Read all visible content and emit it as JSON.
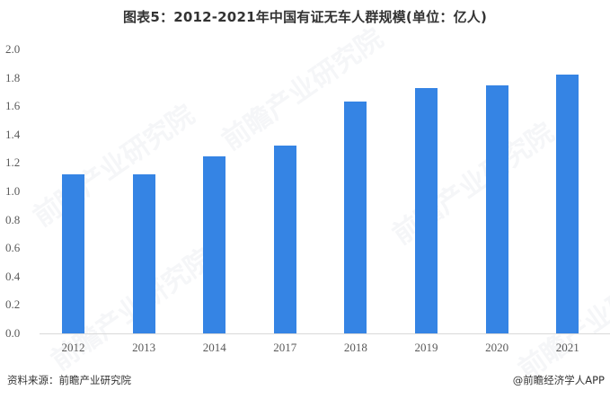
{
  "title": "图表5：2012-2021年中国有证无车人群规模(单位：亿人)",
  "source": "资料来源：前瞻产业研究院",
  "credit": "@前瞻经济学人APP",
  "watermark": "前瞻产业研究院",
  "colors": {
    "bar": "#3584e4",
    "axis": "#d9d9d9",
    "text": "#595959"
  },
  "chart_data": {
    "type": "bar",
    "title": "图表5：2012-2021年中国有证无车人群规模(单位：亿人)",
    "xlabel": "",
    "ylabel": "",
    "unit": "亿人",
    "categories": [
      "2012",
      "2013",
      "2014",
      "2017",
      "2018",
      "2019",
      "2020",
      "2021"
    ],
    "values": [
      1.12,
      1.12,
      1.25,
      1.32,
      1.63,
      1.73,
      1.75,
      1.82
    ],
    "ylim": [
      0,
      2.0
    ],
    "yticks": [
      "0.0",
      "0.2",
      "0.4",
      "0.6",
      "0.8",
      "1.0",
      "1.2",
      "1.4",
      "1.6",
      "1.8",
      "2.0"
    ],
    "grid": false,
    "legend": null
  }
}
